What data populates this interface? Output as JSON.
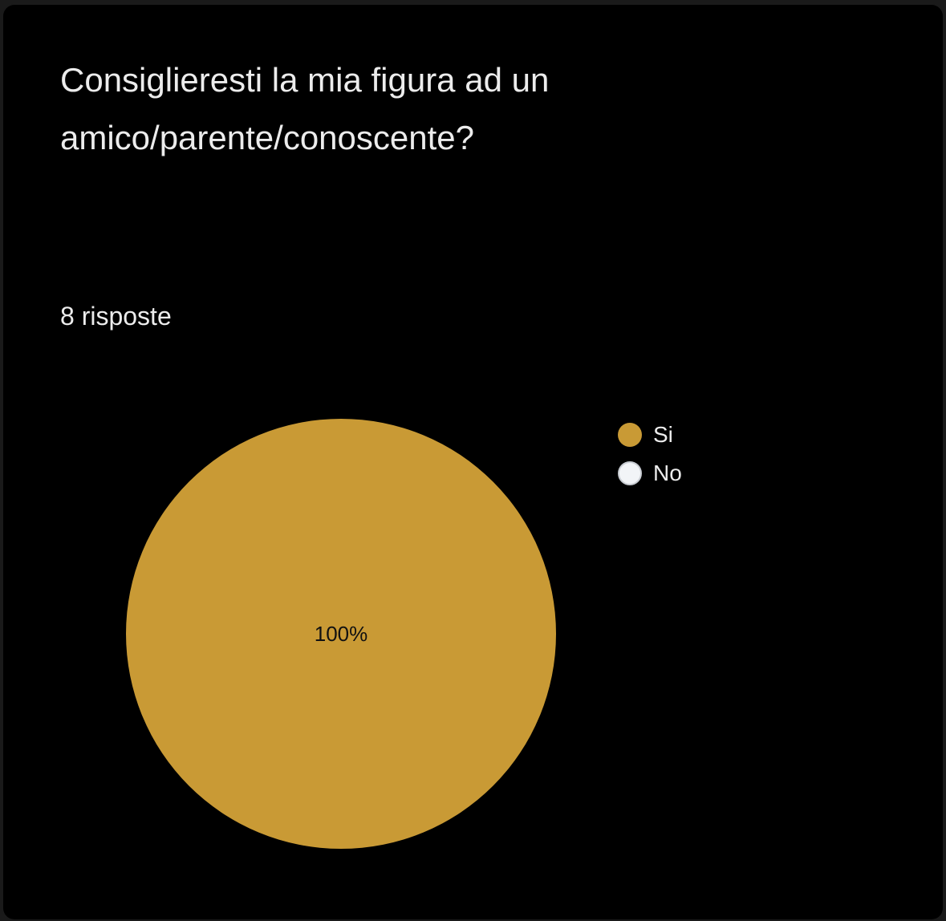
{
  "question": {
    "title": "Consiglieresti la mia figura ad un amico/parente/conoscente?"
  },
  "responses": {
    "count_label": "8 risposte"
  },
  "chart_data": {
    "type": "pie",
    "categories": [
      "Si",
      "No"
    ],
    "values": [
      100,
      0
    ],
    "slice_labels": [
      "100%",
      ""
    ],
    "colors": [
      "#c99a35",
      "#f2f4f7"
    ],
    "legend_position": "right"
  }
}
